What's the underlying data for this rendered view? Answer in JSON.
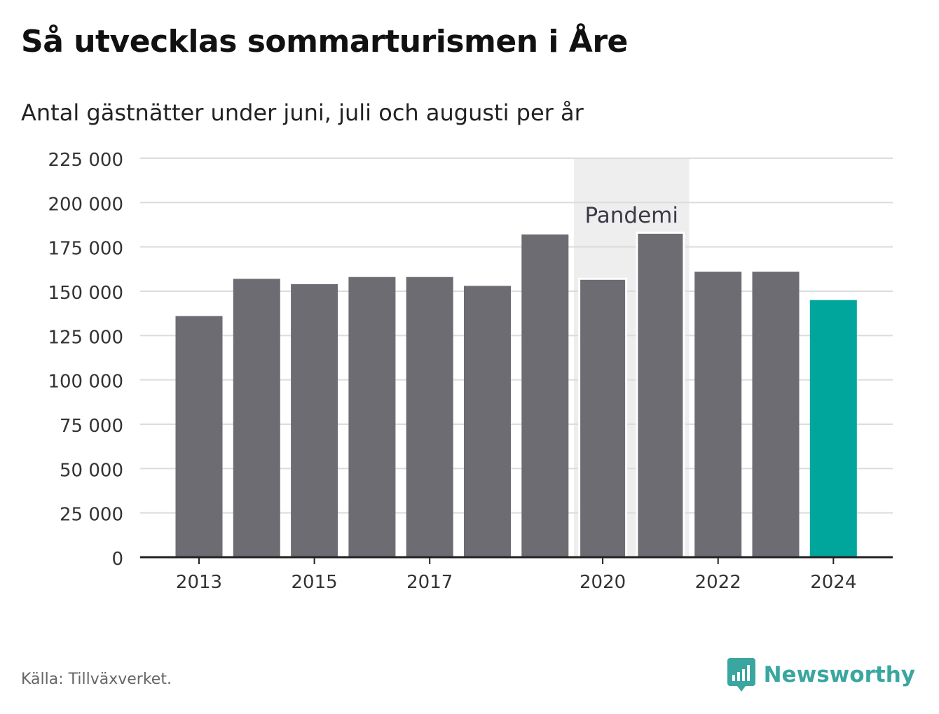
{
  "title": "Så utvecklas sommarturismen i Åre",
  "subtitle": "Antal gästnätter under juni, juli och augusti per år",
  "source": "Källa: Tillväxverket.",
  "brand": {
    "name": "Newsworthy",
    "icon": "chart-speech-bubble-icon",
    "color": "#3aa6a0"
  },
  "chart_data": {
    "type": "bar",
    "x": [
      2013,
      2014,
      2015,
      2016,
      2017,
      2018,
      2019,
      2020,
      2021,
      2022,
      2023,
      2024
    ],
    "values": [
      136000,
      157000,
      154000,
      158000,
      158000,
      153000,
      182000,
      157000,
      183000,
      161000,
      161000,
      145000
    ],
    "x_tick_labels": [
      "2013",
      "2015",
      "2017",
      "2020",
      "2022",
      "2024"
    ],
    "y_tick_labels": [
      "0",
      "25 000",
      "50 000",
      "75 000",
      "100 000",
      "125 000",
      "150 000",
      "175 000",
      "200 000",
      "225 000"
    ],
    "ylim": [
      0,
      225000
    ],
    "grid": true,
    "highlight": {
      "year": 2024,
      "color": "#00a59b"
    },
    "bar_color": "#6d6c72",
    "annotation": {
      "label": "Pandemi",
      "x_start": 2020,
      "x_end": 2021,
      "shade_color": "#eeeeee"
    }
  }
}
